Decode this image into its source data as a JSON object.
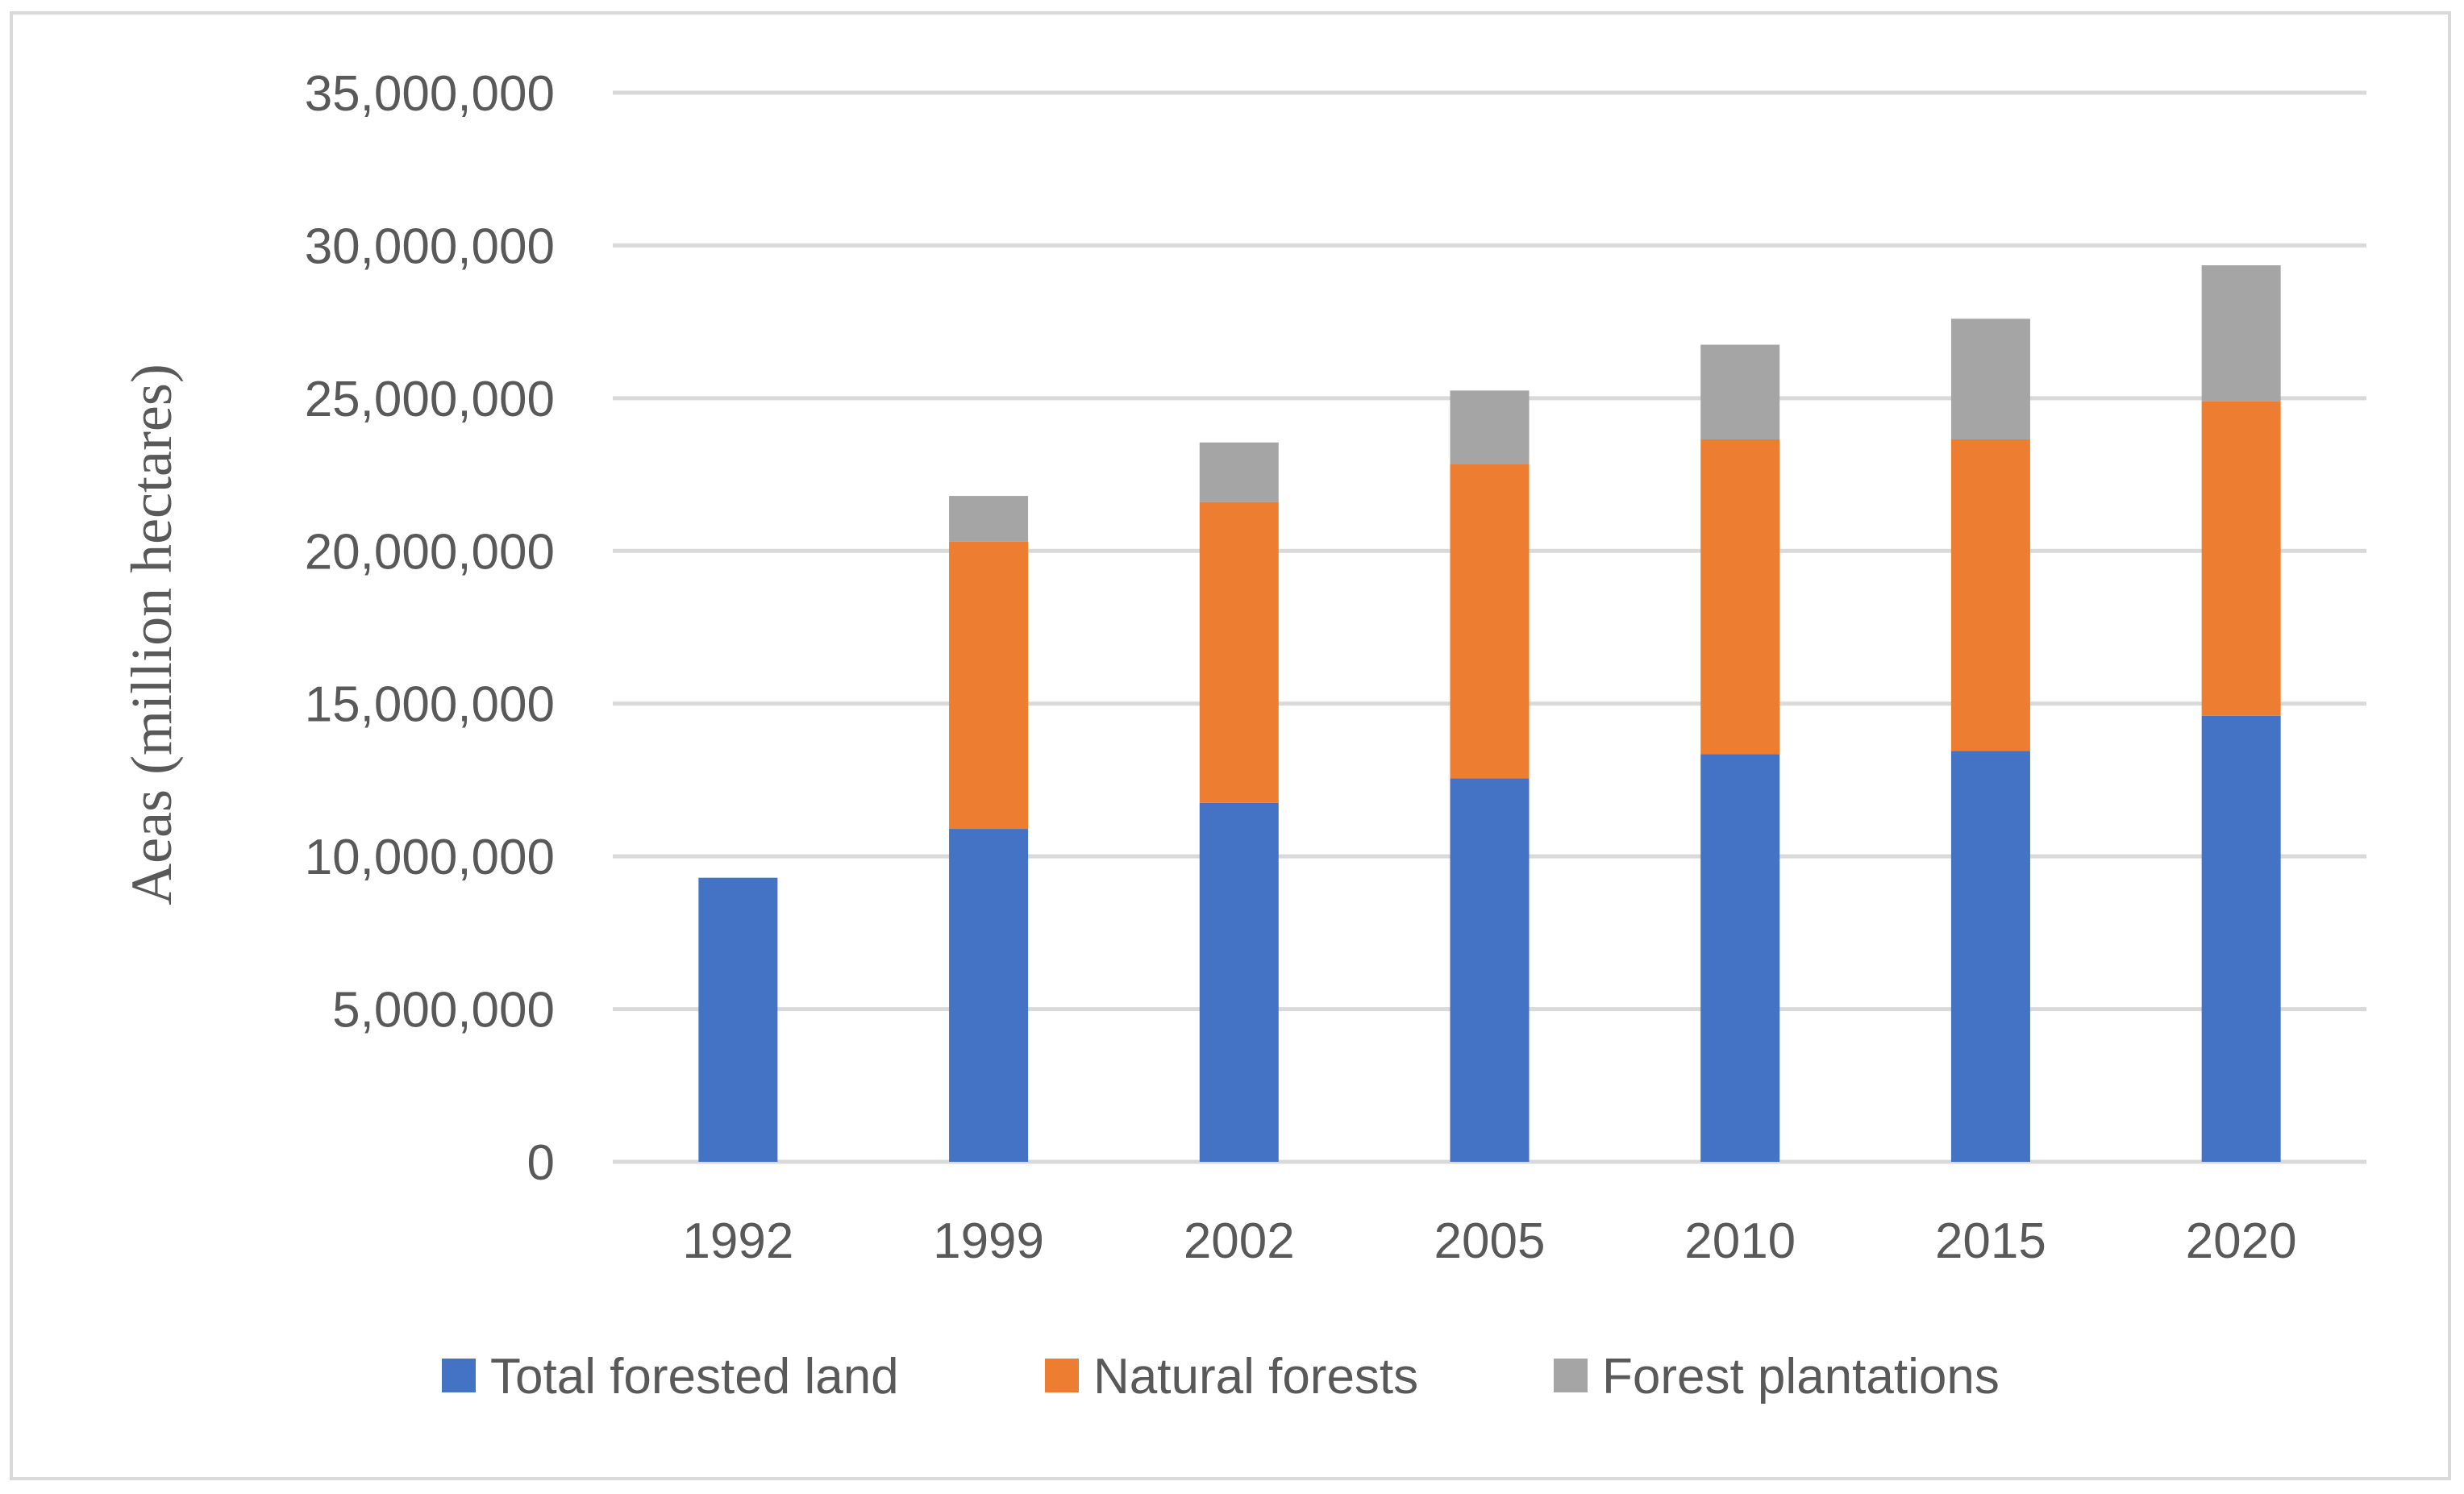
{
  "chart_data": {
    "type": "bar",
    "stacked": true,
    "title": "",
    "xlabel": "",
    "ylabel": "Aeas (million hectares)",
    "ylim": [
      0,
      35000000
    ],
    "yticks": [
      0,
      5000000,
      10000000,
      15000000,
      20000000,
      25000000,
      30000000,
      35000000
    ],
    "ytick_labels": [
      "0",
      "5,000,000",
      "10,000,000",
      "15,000,000",
      "20,000,000",
      "25,000,000",
      "30,000,000",
      "35,000,000"
    ],
    "grid": true,
    "legend_position": "bottom",
    "categories": [
      "1992",
      "1999",
      "2002",
      "2005",
      "2010",
      "2015",
      "2020"
    ],
    "series": [
      {
        "name": "Total forested land",
        "color": "#4472c4",
        "values": [
          9300000,
          10900000,
          11750000,
          12550000,
          13350000,
          13450000,
          14600000
        ]
      },
      {
        "name": "Natural forests",
        "color": "#ed7d31",
        "values": [
          0,
          9400000,
          9850000,
          10300000,
          10300000,
          10200000,
          10300000
        ]
      },
      {
        "name": "Forest plantations",
        "color": "#a5a5a5",
        "values": [
          0,
          1500000,
          1950000,
          2400000,
          3100000,
          3950000,
          4450000
        ]
      }
    ]
  }
}
